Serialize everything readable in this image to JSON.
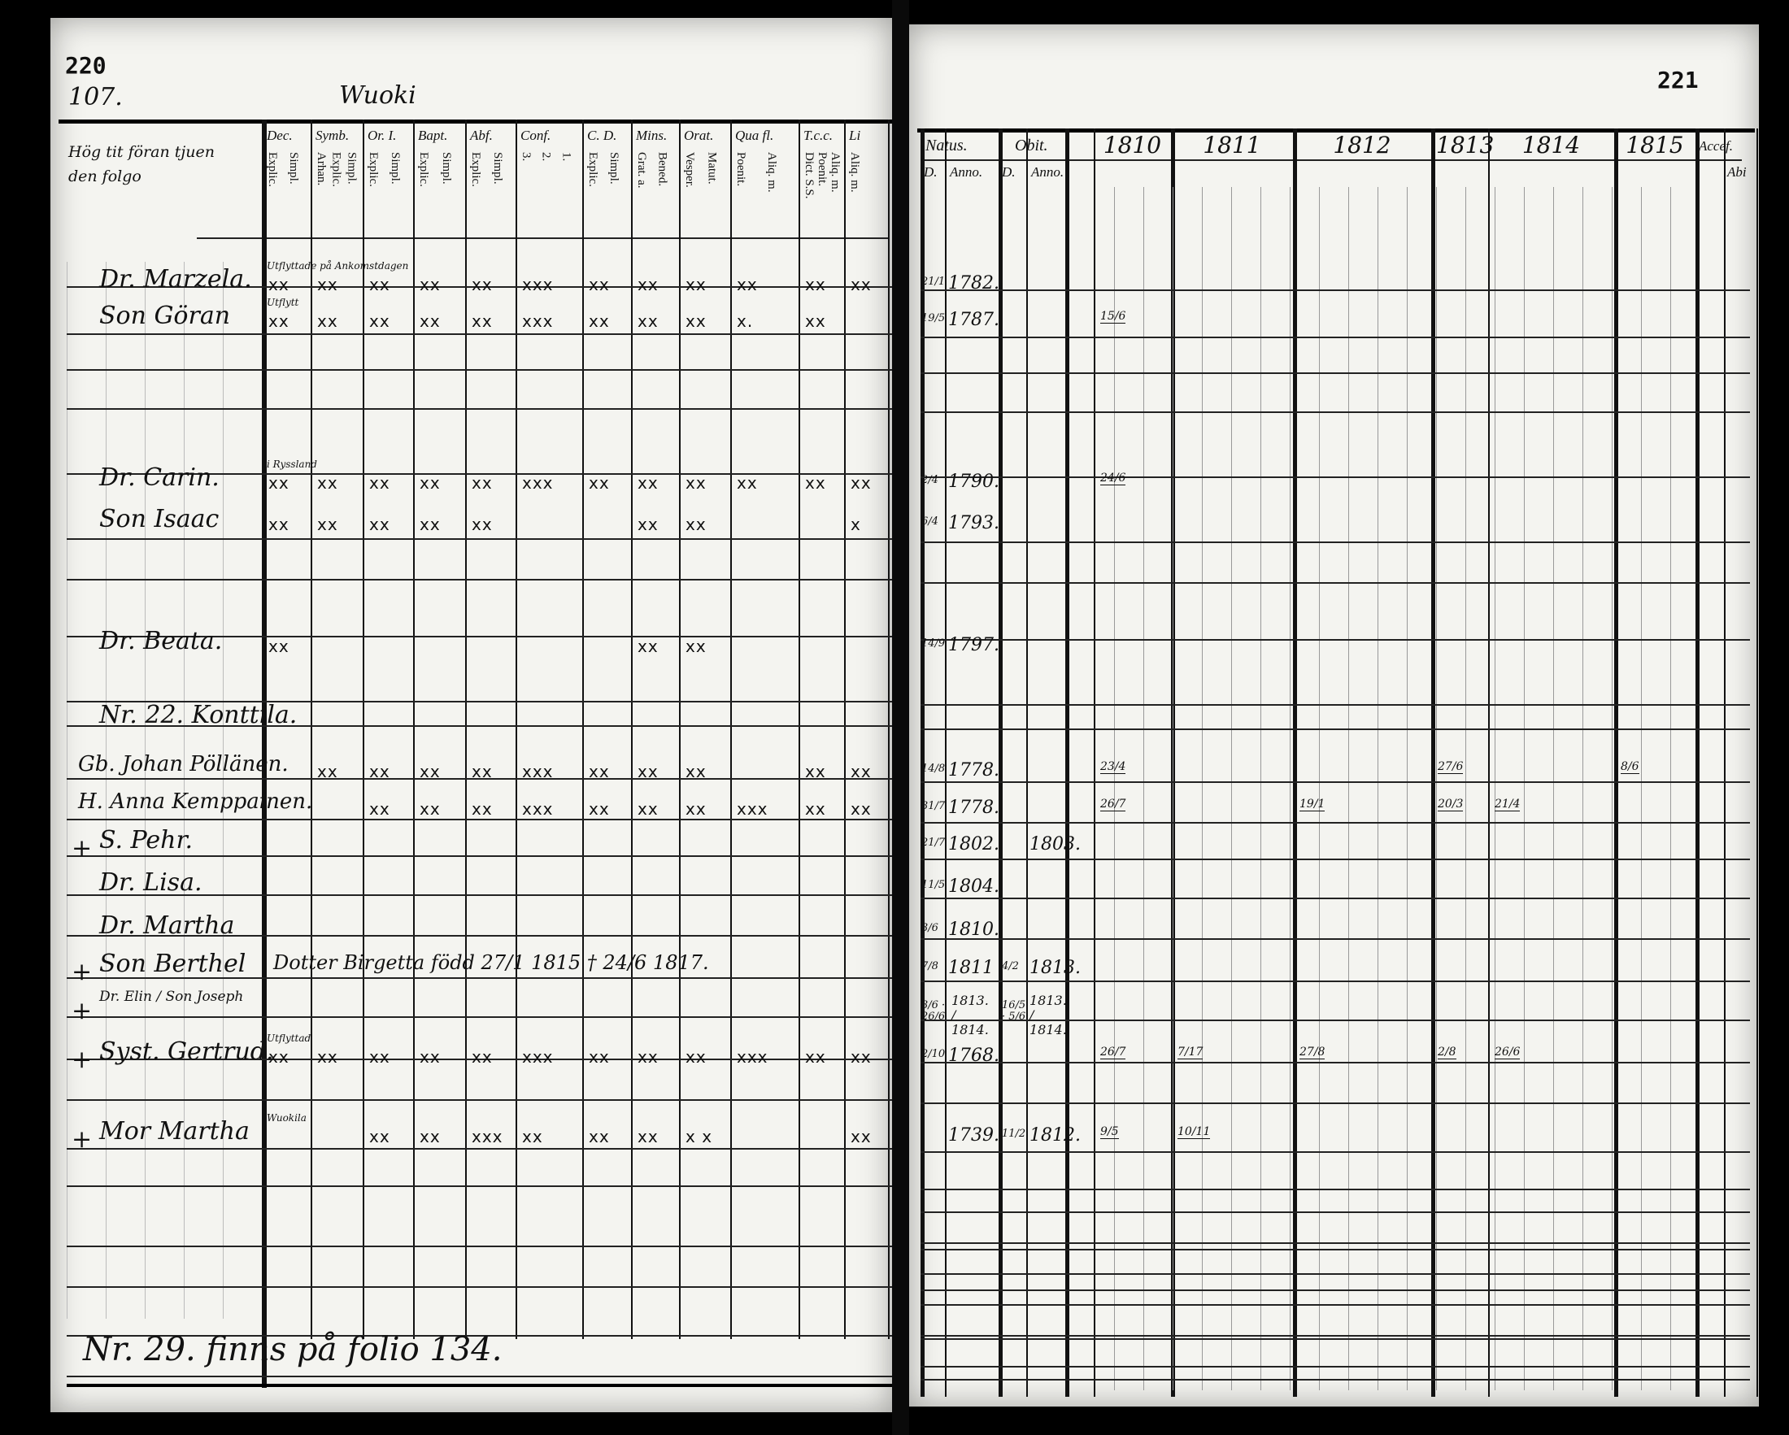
{
  "left_page": {
    "folio_stamp": "220",
    "page_number": "107.",
    "village": "Wuoki",
    "name_column_header": "Hög tit föran tjuen den folgo",
    "columns": [
      {
        "label": "Dec.",
        "sub": [
          "Explic.",
          "Simpl."
        ]
      },
      {
        "label": "Symb.",
        "sub": [
          "Arhan.",
          "Explic.",
          "Simpl."
        ]
      },
      {
        "label": "Or. I.",
        "sub": [
          "Explic.",
          "Simpl."
        ]
      },
      {
        "label": "Bapt.",
        "sub": [
          "Explic.",
          "Simpl."
        ]
      },
      {
        "label": "Abf.",
        "sub": [
          "Explic.",
          "Simpl."
        ]
      },
      {
        "label": "Conf.",
        "sub": [
          "3.",
          "2.",
          "1."
        ]
      },
      {
        "label": "C. D.",
        "sub": [
          "Explic.",
          "Simpl."
        ]
      },
      {
        "label": "Mins.",
        "sub": [
          "Grat. a.",
          "Bened."
        ]
      },
      {
        "label": "Orat.",
        "sub": [
          "Vesper.",
          "Matut."
        ]
      },
      {
        "label": "Qua fl.",
        "sub": [
          "Poenit.",
          "Aliq. m."
        ]
      },
      {
        "label": "T.c.c.",
        "sub": [
          "Dict. S.S.",
          "Poenit.",
          "Aliq. m."
        ]
      },
      {
        "label": "Li",
        "sub": [
          "Aliq. m."
        ]
      }
    ],
    "rows": [
      {
        "prefix": "",
        "name": "Dr. Marzela.",
        "note": "Utflyttade på Ankomstdagen",
        "marks": [
          "xx",
          "xx",
          "xx",
          "xx",
          "xx",
          "xxx",
          "xx",
          "xx",
          "xx",
          "xx",
          "xx",
          "xx"
        ]
      },
      {
        "prefix": "",
        "name": "Son Göran",
        "note": "Utflytt",
        "marks": [
          "xx",
          "xx",
          "xx",
          "xx",
          "xx",
          "xxx",
          "xx",
          "xx",
          "xx",
          "x.",
          "xx",
          ""
        ]
      },
      {
        "prefix": "",
        "name": "Dr. Carin.",
        "note": "i Ryssland",
        "marks": [
          "xx",
          "xx",
          "xx",
          "xx",
          "xx",
          "xxx",
          "xx",
          "xx",
          "xx",
          "xx",
          "xx",
          "xx"
        ]
      },
      {
        "prefix": "",
        "name": "Son Isaac",
        "note": "",
        "marks": [
          "xx",
          "xx",
          "xx",
          "xx",
          "xx",
          "",
          "",
          "xx",
          "xx",
          "",
          "",
          "x"
        ]
      },
      {
        "prefix": "",
        "name": "Dr. Beata.",
        "note": "",
        "marks": [
          "xx",
          "",
          "",
          "",
          "",
          "",
          "",
          "xx",
          "xx",
          "",
          "",
          ""
        ]
      },
      {
        "prefix": "",
        "name": "Nr. 22. Konttila.",
        "note": "",
        "marks": []
      },
      {
        "prefix": "",
        "name": "Gb. Johan Pöllänen.",
        "note": "",
        "marks": [
          "",
          "xx",
          "xx",
          "xx",
          "xx",
          "xxx",
          "xx",
          "xx",
          "xx",
          "",
          "xx",
          "xx"
        ]
      },
      {
        "prefix": "",
        "name": "H. Anna Kemppainen.",
        "note": "",
        "marks": [
          "",
          "",
          "xx",
          "xx",
          "xx",
          "xxx",
          "xx",
          "xx",
          "xx",
          "xxx",
          "xx",
          "xx"
        ]
      },
      {
        "prefix": "+",
        "name": "S. Pehr.",
        "note": "",
        "marks": []
      },
      {
        "prefix": "",
        "name": "Dr. Lisa.",
        "note": "",
        "marks": []
      },
      {
        "prefix": "",
        "name": "Dr. Martha",
        "note": "",
        "marks": []
      },
      {
        "prefix": "+",
        "name": "Son Berthel",
        "note": "Dotter Birgetta född 27/1 1815 † 24/6 1817.",
        "marks": []
      },
      {
        "prefix": "+",
        "name": "Dr. Elin / Son Joseph",
        "note": "",
        "marks": []
      },
      {
        "prefix": "+",
        "name": "Syst. Gertrud.",
        "note": "Utflyttad",
        "marks": [
          "xx",
          "xx",
          "xx",
          "xx",
          "xx",
          "xxx",
          "xx",
          "xx",
          "xx",
          "xxx",
          "xx",
          "xx"
        ]
      },
      {
        "prefix": "+",
        "name": "Mor Martha",
        "note": "Wuokila",
        "marks": [
          "",
          "",
          "xx",
          "xx",
          "xxx",
          "xx",
          "xx",
          "xx",
          "x x",
          "",
          "",
          "xx"
        ]
      }
    ],
    "footer_note": "Nr. 29. finns på folio 134."
  },
  "right_page": {
    "folio_stamp": "221",
    "natus_header": "Natus.",
    "obit_header": "Obit.",
    "day_label": "D.",
    "anno_label": "Anno.",
    "years": [
      "1810",
      "1811",
      "1812",
      "1813",
      "1814",
      "1815"
    ],
    "extra_headers": [
      "Accef.",
      "Abi"
    ],
    "rows": [
      {
        "natus_day": "21/1",
        "natus_year": "1782.",
        "obit_day": "",
        "obit_year": "",
        "year_marks": []
      },
      {
        "natus_day": "19/5",
        "natus_year": "1787.",
        "obit_day": "",
        "obit_year": "",
        "year_marks": [
          {
            "year": "1810",
            "value": "15/6"
          }
        ]
      },
      {
        "natus_day": "2/4",
        "natus_year": "1790.",
        "obit_day": "",
        "obit_year": "",
        "year_marks": [
          {
            "year": "1810",
            "value": "24/6"
          }
        ]
      },
      {
        "natus_day": "6/4",
        "natus_year": "1793.",
        "obit_day": "",
        "obit_year": "",
        "year_marks": []
      },
      {
        "natus_day": "14/9",
        "natus_year": "1797.",
        "obit_day": "",
        "obit_year": "",
        "year_marks": []
      },
      {
        "natus_day": "",
        "natus_year": "",
        "obit_day": "",
        "obit_year": "",
        "year_marks": []
      },
      {
        "natus_day": "14/8",
        "natus_year": "1778.",
        "obit_day": "",
        "obit_year": "",
        "year_marks": [
          {
            "year": "1810",
            "value": "23/4"
          },
          {
            "year": "1813",
            "value": "27/6"
          },
          {
            "year": "1815",
            "value": "8/6"
          }
        ]
      },
      {
        "natus_day": "31/7",
        "natus_year": "1778.",
        "obit_day": "",
        "obit_year": "",
        "year_marks": [
          {
            "year": "1810",
            "value": "26/7"
          },
          {
            "year": "1812",
            "value": "19/1"
          },
          {
            "year": "1813",
            "value": "20/3"
          },
          {
            "year": "1814",
            "value": "21/4"
          }
        ]
      },
      {
        "natus_day": "21/7",
        "natus_year": "1802.",
        "obit_day": "",
        "obit_year": "1803.",
        "year_marks": []
      },
      {
        "natus_day": "11/5",
        "natus_year": "1804.",
        "obit_day": "",
        "obit_year": "",
        "year_marks": []
      },
      {
        "natus_day": "3/6",
        "natus_year": "1810.",
        "obit_day": "",
        "obit_year": "",
        "year_marks": []
      },
      {
        "natus_day": "7/8",
        "natus_year": "1811",
        "obit_day": "4/2",
        "obit_year": "1813.",
        "year_marks": []
      },
      {
        "natus_day": "3/6 · 26/6",
        "natus_year": "1813. / 1814.",
        "obit_day": "16/5 · 5/6",
        "obit_year": "1813. / 1814.",
        "year_marks": []
      },
      {
        "natus_day": "2/10",
        "natus_year": "1768.",
        "obit_day": "",
        "obit_year": "",
        "year_marks": [
          {
            "year": "1810",
            "value": "26/7"
          },
          {
            "year": "1811",
            "value": "7/17"
          },
          {
            "year": "1812",
            "value": "27/8"
          },
          {
            "year": "1813",
            "value": "2/8"
          },
          {
            "year": "1814",
            "value": "26/6"
          }
        ]
      },
      {
        "natus_day": "",
        "natus_year": "1739.",
        "obit_day": "11/2",
        "obit_year": "1812.",
        "year_marks": [
          {
            "year": "1810",
            "value": "9/5"
          },
          {
            "year": "1811",
            "value": "10/11"
          }
        ]
      }
    ]
  }
}
